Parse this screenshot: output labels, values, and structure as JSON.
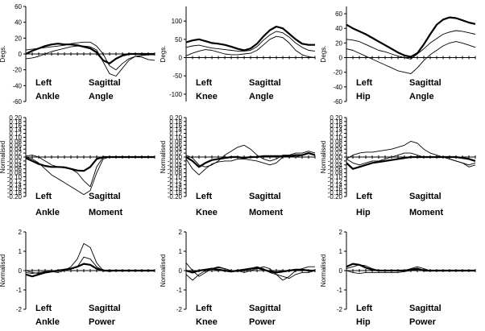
{
  "chart_data": [
    {
      "type": "line",
      "title_line1": [
        "Left",
        "Sagittal"
      ],
      "title_line2": [
        "Ankle",
        "Angle"
      ],
      "ylabel": "Degs.",
      "ylim": [
        -60,
        60
      ],
      "yticks": [
        "60",
        "40",
        "20",
        "0",
        "-20",
        "-40",
        "-60"
      ],
      "x": [
        0,
        5,
        10,
        15,
        20,
        25,
        30,
        35,
        40,
        45,
        50,
        55,
        60,
        65,
        70,
        75,
        80,
        85,
        90,
        95,
        100
      ],
      "series": [
        {
          "style": "bold",
          "values": [
            0,
            4,
            7,
            10,
            12,
            13,
            12,
            12,
            11,
            9,
            7,
            2,
            -8,
            -12,
            -6,
            -2,
            0,
            0,
            0,
            0,
            0
          ]
        },
        {
          "style": "thin",
          "values": [
            5,
            6,
            7,
            8,
            9,
            10,
            11,
            13,
            14,
            15,
            15,
            10,
            0,
            -15,
            -20,
            -12,
            -6,
            -3,
            -4,
            -7,
            -8
          ]
        },
        {
          "style": "thin",
          "values": [
            -6,
            -5,
            -3,
            0,
            3,
            5,
            7,
            9,
            10,
            10,
            9,
            5,
            -10,
            -25,
            -28,
            -18,
            -8,
            -3,
            -2,
            -1,
            -1
          ]
        }
      ],
      "vband": [
        0,
        11
      ]
    },
    {
      "type": "line",
      "title_line1": [
        "Left",
        "Sagittal"
      ],
      "title_line2": [
        "Knee",
        "Angle"
      ],
      "ylabel": "Degs.",
      "ylim": [
        -120,
        140
      ],
      "yticks": [
        "100",
        "50",
        "0",
        "-50",
        "-100"
      ],
      "x": [
        0,
        5,
        10,
        15,
        20,
        25,
        30,
        35,
        40,
        45,
        50,
        55,
        60,
        65,
        70,
        75,
        80,
        85,
        90,
        95,
        100
      ],
      "series": [
        {
          "style": "bold",
          "values": [
            42,
            47,
            50,
            45,
            40,
            38,
            35,
            30,
            24,
            20,
            25,
            38,
            58,
            75,
            85,
            80,
            65,
            50,
            38,
            35,
            35
          ]
        },
        {
          "style": "thin",
          "values": [
            28,
            32,
            34,
            30,
            26,
            24,
            22,
            20,
            18,
            18,
            20,
            30,
            48,
            62,
            72,
            68,
            56,
            40,
            28,
            20,
            18
          ]
        },
        {
          "style": "thin",
          "values": [
            5,
            12,
            18,
            22,
            20,
            15,
            10,
            8,
            8,
            10,
            12,
            20,
            35,
            50,
            58,
            55,
            40,
            20,
            8,
            2,
            0
          ]
        }
      ]
    },
    {
      "type": "line",
      "title_line1": [
        "Left",
        "Sagittal"
      ],
      "title_line2": [
        "Hip",
        "Angle"
      ],
      "ylabel": "Degs.",
      "ylim": [
        -60,
        70
      ],
      "yticks": [
        "60",
        "40",
        "20",
        "0",
        "-20",
        "-40",
        "-60"
      ],
      "x": [
        0,
        5,
        10,
        15,
        20,
        25,
        30,
        35,
        40,
        45,
        50,
        55,
        60,
        65,
        70,
        75,
        80,
        85,
        90,
        95,
        100
      ],
      "series": [
        {
          "style": "bold",
          "values": [
            45,
            40,
            36,
            32,
            27,
            22,
            17,
            12,
            7,
            3,
            1,
            6,
            18,
            32,
            45,
            52,
            55,
            54,
            51,
            48,
            46
          ]
        },
        {
          "style": "thin",
          "values": [
            25,
            24,
            22,
            18,
            14,
            10,
            8,
            5,
            2,
            0,
            -2,
            5,
            12,
            20,
            26,
            32,
            35,
            37,
            36,
            34,
            32
          ]
        },
        {
          "style": "thin",
          "values": [
            12,
            10,
            6,
            2,
            -2,
            -6,
            -10,
            -14,
            -18,
            -20,
            -22,
            -14,
            -4,
            4,
            10,
            16,
            20,
            22,
            20,
            17,
            14
          ]
        }
      ]
    },
    {
      "type": "line",
      "title_line1": [
        "Left",
        "Sagittal"
      ],
      "title_line2": [
        "Ankle",
        "Moment"
      ],
      "ylabel": "Normalised",
      "ylim": [
        -0.2,
        0.2
      ],
      "yticks": [
        "0.20",
        "0.18",
        "0.16",
        "0.14",
        "0.12",
        "0.10",
        "0.08",
        "0.06",
        "0.04",
        "0.02",
        "0.00",
        "-0.02",
        "-0.04",
        "-0.06",
        "-0.08",
        "-0.10",
        "-0.12",
        "-0.14",
        "-0.16",
        "-0.18",
        "-0.20"
      ],
      "x": [
        0,
        5,
        10,
        15,
        20,
        25,
        30,
        35,
        40,
        45,
        50,
        55,
        60,
        65,
        70,
        75,
        80,
        85,
        90,
        95,
        100
      ],
      "series": [
        {
          "style": "bold",
          "values": [
            -0.005,
            -0.02,
            -0.035,
            -0.045,
            -0.05,
            -0.05,
            -0.052,
            -0.06,
            -0.068,
            -0.07,
            -0.05,
            -0.01,
            0,
            0,
            0,
            0,
            0,
            0,
            0,
            0,
            0
          ]
        },
        {
          "style": "thin",
          "values": [
            0.005,
            0.01,
            0,
            -0.02,
            -0.04,
            -0.05,
            -0.055,
            -0.06,
            -0.08,
            -0.12,
            -0.15,
            -0.05,
            0,
            0,
            0,
            0,
            0,
            0,
            0,
            0,
            0
          ]
        },
        {
          "style": "thin",
          "values": [
            0,
            -0.01,
            -0.03,
            -0.06,
            -0.09,
            -0.11,
            -0.13,
            -0.15,
            -0.17,
            -0.19,
            -0.17,
            -0.08,
            -0.01,
            0,
            0,
            0,
            0,
            0,
            0,
            0,
            0
          ]
        }
      ]
    },
    {
      "type": "line",
      "title_line1": [
        "Left",
        "Sagittal"
      ],
      "title_line2": [
        "Knee",
        "Moment"
      ],
      "ylabel": "Normalised",
      "ylim": [
        -0.2,
        0.2
      ],
      "yticks": [
        "0.20",
        "0.18",
        "0.16",
        "0.14",
        "0.12",
        "0.10",
        "0.08",
        "0.06",
        "0.04",
        "0.02",
        "0.00",
        "-0.02",
        "-0.04",
        "-0.06",
        "-0.08",
        "-0.10",
        "-0.12",
        "-0.14",
        "-0.16",
        "-0.18",
        "-0.20"
      ],
      "x": [
        0,
        5,
        10,
        15,
        20,
        25,
        30,
        35,
        40,
        45,
        50,
        55,
        60,
        65,
        70,
        75,
        80,
        85,
        90,
        95,
        100
      ],
      "series": [
        {
          "style": "bold",
          "values": [
            0,
            -0.02,
            -0.05,
            -0.03,
            -0.015,
            -0.01,
            -0.005,
            0,
            0,
            -0.005,
            0,
            0,
            0.005,
            0.005,
            0.005,
            0.005,
            0.005,
            0.01,
            0.01,
            0.02,
            0.01
          ]
        },
        {
          "style": "thin",
          "values": [
            0.01,
            -0.005,
            -0.04,
            -0.05,
            -0.04,
            -0.02,
            0.01,
            0.03,
            0.05,
            0.06,
            0.04,
            0.01,
            -0.01,
            -0.02,
            -0.01,
            0.01,
            0.01,
            0,
            0.01,
            0.02,
            0.01
          ]
        },
        {
          "style": "thin",
          "values": [
            -0.01,
            -0.06,
            -0.09,
            -0.06,
            -0.035,
            -0.025,
            -0.02,
            -0.02,
            -0.01,
            -0.01,
            -0.015,
            -0.02,
            -0.03,
            -0.04,
            -0.03,
            0,
            0.01,
            0.02,
            0.02,
            0.03,
            0.02
          ]
        }
      ]
    },
    {
      "type": "line",
      "title_line1": [
        "Left",
        "Sagittal"
      ],
      "title_line2": [
        "Hip",
        "Moment"
      ],
      "ylabel": "Normalised",
      "ylim": [
        -0.2,
        0.2
      ],
      "yticks": [
        "0.20",
        "0.18",
        "0.16",
        "0.14",
        "0.12",
        "0.10",
        "0.08",
        "0.06",
        "0.04",
        "0.02",
        "0.00",
        "-0.02",
        "-0.04",
        "-0.06",
        "-0.08",
        "-0.10",
        "-0.12",
        "-0.14",
        "-0.16",
        "-0.18",
        "-0.20"
      ],
      "x": [
        0,
        5,
        10,
        15,
        20,
        25,
        30,
        35,
        40,
        45,
        50,
        55,
        60,
        65,
        70,
        75,
        80,
        85,
        90,
        95,
        100
      ],
      "series": [
        {
          "style": "bold",
          "values": [
            -0.03,
            -0.06,
            -0.05,
            -0.04,
            -0.03,
            -0.025,
            -0.02,
            -0.015,
            -0.01,
            -0.005,
            0,
            0,
            0,
            0,
            0,
            0,
            0,
            0,
            -0.005,
            -0.01,
            -0.02
          ]
        },
        {
          "style": "thin",
          "values": [
            -0.01,
            -0.03,
            -0.04,
            -0.03,
            -0.02,
            -0.02,
            -0.01,
            0,
            0.01,
            0.02,
            0.02,
            0.01,
            0,
            0,
            0,
            0,
            -0.01,
            -0.02,
            -0.03,
            -0.04,
            -0.03
          ]
        },
        {
          "style": "thin",
          "values": [
            -0.01,
            0.01,
            0.02,
            0.025,
            0.025,
            0.03,
            0.035,
            0.04,
            0.05,
            0.06,
            0.08,
            0.07,
            0.04,
            0.02,
            0.01,
            0,
            -0.01,
            -0.02,
            -0.03,
            -0.05,
            -0.04
          ]
        }
      ]
    },
    {
      "type": "line",
      "title_line1": [
        "Left",
        "Sagittal"
      ],
      "title_line2": [
        "Ankle",
        "Power"
      ],
      "ylabel": "Normalised",
      "ylim": [
        -2,
        2
      ],
      "yticks": [
        "2",
        "1",
        "0",
        "-1",
        "-2"
      ],
      "x": [
        0,
        5,
        10,
        15,
        20,
        25,
        30,
        35,
        40,
        45,
        50,
        55,
        60,
        65,
        70,
        75,
        80,
        85,
        90,
        95,
        100
      ],
      "series": [
        {
          "style": "bold",
          "values": [
            -0.2,
            -0.3,
            -0.2,
            -0.1,
            -0.05,
            0,
            0.05,
            0.1,
            0.2,
            0.35,
            0.3,
            0.1,
            0,
            0,
            0,
            0,
            0,
            0,
            0,
            0,
            0
          ]
        },
        {
          "style": "thin",
          "values": [
            0,
            -0.1,
            -0.15,
            -0.1,
            -0.05,
            0,
            0,
            0.2,
            0.6,
            1.4,
            1.2,
            0.4,
            0,
            -0.05,
            0,
            0,
            0,
            0.02,
            0.02,
            0,
            0
          ]
        },
        {
          "style": "thin",
          "values": [
            -0.1,
            -0.15,
            -0.1,
            -0.05,
            -0.05,
            -0.1,
            0,
            0.1,
            0.2,
            0.7,
            0.6,
            0.2,
            0,
            0,
            0,
            0,
            0,
            0,
            0,
            0,
            0
          ]
        }
      ]
    },
    {
      "type": "line",
      "title_line1": [
        "Left",
        "Sagittal"
      ],
      "title_line2": [
        "Knee",
        "Power"
      ],
      "ylabel": "Normalised",
      "ylim": [
        -2,
        2
      ],
      "yticks": [
        "2",
        "1",
        "0",
        "-1",
        "-2"
      ],
      "x": [
        0,
        5,
        10,
        15,
        20,
        25,
        30,
        35,
        40,
        45,
        50,
        55,
        60,
        65,
        70,
        75,
        80,
        85,
        90,
        95,
        100
      ],
      "series": [
        {
          "style": "bold",
          "values": [
            0,
            -0.1,
            0,
            0.05,
            0.1,
            0.05,
            0,
            -0.05,
            0,
            0.05,
            0.1,
            0.15,
            0.05,
            -0.05,
            -0.1,
            -0.05,
            0,
            0.05,
            0.05,
            0,
            0
          ]
        },
        {
          "style": "thin",
          "values": [
            0.4,
            0,
            -0.3,
            -0.1,
            0.1,
            0.2,
            0.1,
            0,
            0,
            -0.1,
            0,
            0.1,
            0.2,
            0.1,
            -0.2,
            -0.5,
            -0.3,
            0,
            0.1,
            0.2,
            0.2
          ]
        },
        {
          "style": "thin",
          "values": [
            -0.2,
            -0.5,
            -0.2,
            0,
            0.1,
            0.15,
            0.1,
            0,
            -0.05,
            0,
            0.1,
            0.2,
            0.1,
            -0.1,
            -0.2,
            -0.3,
            -0.4,
            -0.2,
            -0.1,
            -0.1,
            0
          ]
        }
      ]
    },
    {
      "type": "line",
      "title_line1": [
        "Left",
        "Sagittal"
      ],
      "title_line2": [
        "Hip",
        "Power"
      ],
      "ylabel": "Normalised",
      "ylim": [
        -2,
        2
      ],
      "yticks": [
        "2",
        "1",
        "0",
        "-1",
        "-2"
      ],
      "x": [
        0,
        5,
        10,
        15,
        20,
        25,
        30,
        35,
        40,
        45,
        50,
        55,
        60,
        65,
        70,
        75,
        80,
        85,
        90,
        95,
        100
      ],
      "series": [
        {
          "style": "bold",
          "values": [
            0.2,
            0.35,
            0.3,
            0.15,
            0.05,
            0,
            0,
            0,
            0,
            0,
            0.05,
            0.1,
            0,
            0,
            0,
            0,
            0,
            0,
            0,
            0,
            0
          ]
        },
        {
          "style": "thin",
          "values": [
            0.1,
            0.2,
            0.3,
            0.25,
            0.1,
            0,
            0,
            0,
            0,
            0,
            0.1,
            0.2,
            0.1,
            0,
            0,
            0,
            0,
            0,
            0,
            0,
            0
          ]
        },
        {
          "style": "thin",
          "values": [
            0,
            -0.1,
            -0.15,
            -0.1,
            -0.1,
            -0.1,
            -0.1,
            -0.1,
            -0.1,
            -0.05,
            0,
            0.05,
            0.05,
            0,
            0,
            0,
            0,
            0,
            0,
            0,
            0
          ]
        }
      ]
    }
  ]
}
